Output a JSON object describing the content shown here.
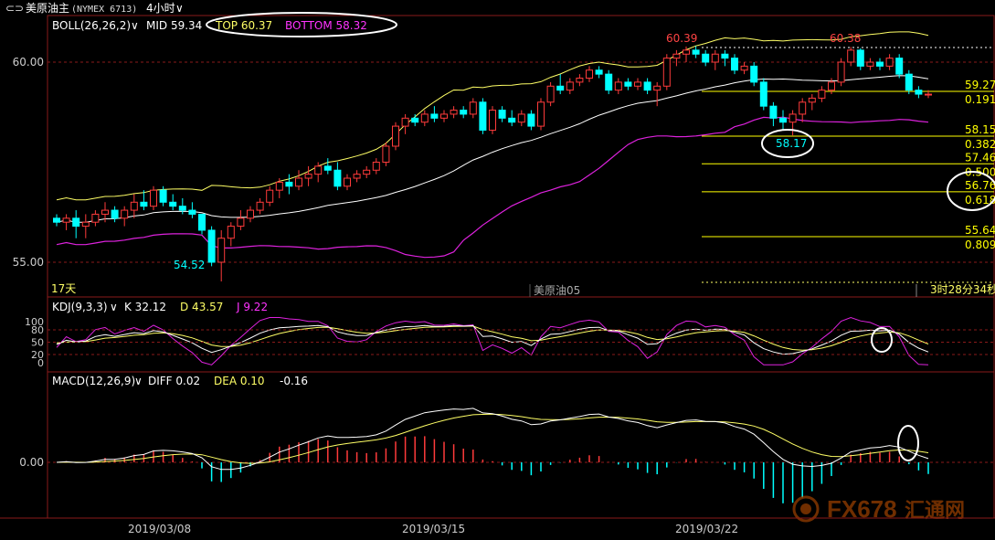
{
  "header": {
    "back_glyph": "⊂⊃",
    "instrument": "美原油主",
    "code": "(NYMEX 6713)",
    "period": "4小时",
    "chevron": "∨"
  },
  "boll": {
    "label": "BOLL(26,26,2)",
    "mid": "MID 59.34",
    "top": "TOP 60.37",
    "bottom": "BOTTOM 58.32"
  },
  "price_axis": {
    "ticks": [
      "60.00",
      "55.00"
    ]
  },
  "annotations": {
    "high1": "60.39",
    "high2": "60.38",
    "low": "54.52",
    "swing_low": "58.17",
    "bars_count": "17天",
    "watermark_symbol": "美原油05",
    "countdown": "3时28分34秒"
  },
  "fib_levels": [
    {
      "price": "59.27",
      "ratio": "0.191"
    },
    {
      "price": "58.15",
      "ratio": "0.382"
    },
    {
      "price": "57.46",
      "ratio": "0.500"
    },
    {
      "price": "56.76",
      "ratio": "0.618"
    },
    {
      "price": "55.64",
      "ratio": "0.809"
    }
  ],
  "kdj": {
    "label": "KDJ(9,3,3)",
    "k": "K 32.12",
    "d": "D 43.57",
    "j": "J 9.22",
    "ticks": [
      "100",
      "80",
      "50",
      "20",
      "0"
    ]
  },
  "macd": {
    "label": "MACD(12,26,9)",
    "diff": "DIFF 0.02",
    "dea": "DEA 0.10",
    "hist": "-0.16",
    "zero_tick": "0.00"
  },
  "x_axis": {
    "dates": [
      "2019/03/08",
      "2019/03/15",
      "2019/03/22"
    ]
  },
  "logo": {
    "text": "FX678",
    "cn": "汇通网"
  },
  "colors": {
    "up": "#ff3b3b",
    "down": "#00ffff",
    "mid_line": "#ffffff",
    "upper_band": "#ffff66",
    "lower_band": "#dd22dd",
    "grid_red": "#8a1a1a",
    "fib": "#ffff00",
    "text_axis": "#cccccc"
  },
  "chart_data": {
    "type": "candlestick",
    "timeframe": "4h",
    "ylim_price": [
      54.2,
      61.0
    ],
    "candles": [
      [
        56.1,
        56.2,
        55.9,
        56.0
      ],
      [
        56.0,
        56.2,
        55.8,
        56.1
      ],
      [
        56.1,
        56.3,
        55.6,
        55.9
      ],
      [
        55.9,
        56.2,
        55.6,
        56.0
      ],
      [
        56.0,
        56.3,
        55.9,
        56.2
      ],
      [
        56.2,
        56.5,
        56.0,
        56.3
      ],
      [
        56.3,
        56.4,
        56.0,
        56.1
      ],
      [
        56.1,
        56.4,
        55.9,
        56.3
      ],
      [
        56.3,
        56.7,
        56.1,
        56.5
      ],
      [
        56.5,
        56.8,
        56.3,
        56.4
      ],
      [
        56.4,
        56.9,
        56.3,
        56.8
      ],
      [
        56.8,
        56.9,
        56.4,
        56.5
      ],
      [
        56.5,
        56.7,
        56.3,
        56.4
      ],
      [
        56.4,
        56.6,
        56.2,
        56.3
      ],
      [
        56.3,
        56.5,
        56.1,
        56.2
      ],
      [
        56.2,
        56.2,
        55.7,
        55.8
      ],
      [
        55.8,
        55.9,
        54.9,
        55.0
      ],
      [
        55.0,
        55.8,
        54.52,
        55.6
      ],
      [
        55.6,
        56.0,
        55.4,
        55.9
      ],
      [
        55.9,
        56.3,
        55.8,
        56.1
      ],
      [
        56.1,
        56.4,
        56.0,
        56.3
      ],
      [
        56.3,
        56.6,
        56.2,
        56.5
      ],
      [
        56.5,
        56.9,
        56.4,
        56.8
      ],
      [
        56.8,
        57.1,
        56.6,
        57.0
      ],
      [
        57.0,
        57.2,
        56.7,
        56.9
      ],
      [
        56.9,
        57.3,
        56.8,
        57.1
      ],
      [
        57.1,
        57.4,
        56.9,
        57.2
      ],
      [
        57.2,
        57.5,
        57.0,
        57.4
      ],
      [
        57.4,
        57.6,
        57.2,
        57.3
      ],
      [
        57.3,
        57.5,
        56.8,
        56.9
      ],
      [
        56.9,
        57.2,
        56.8,
        57.1
      ],
      [
        57.1,
        57.3,
        57.0,
        57.2
      ],
      [
        57.2,
        57.4,
        57.1,
        57.3
      ],
      [
        57.3,
        57.6,
        57.2,
        57.5
      ],
      [
        57.5,
        58.0,
        57.4,
        57.9
      ],
      [
        57.9,
        58.5,
        57.8,
        58.4
      ],
      [
        58.4,
        58.7,
        58.2,
        58.6
      ],
      [
        58.6,
        58.7,
        58.4,
        58.5
      ],
      [
        58.5,
        58.8,
        58.4,
        58.7
      ],
      [
        58.7,
        58.9,
        58.5,
        58.6
      ],
      [
        58.6,
        58.8,
        58.5,
        58.7
      ],
      [
        58.7,
        58.9,
        58.6,
        58.8
      ],
      [
        58.8,
        58.9,
        58.6,
        58.7
      ],
      [
        58.7,
        59.1,
        58.6,
        59.0
      ],
      [
        59.0,
        59.1,
        58.2,
        58.3
      ],
      [
        58.3,
        58.9,
        58.2,
        58.8
      ],
      [
        58.8,
        58.9,
        58.5,
        58.6
      ],
      [
        58.6,
        58.8,
        58.4,
        58.5
      ],
      [
        58.5,
        58.8,
        58.4,
        58.7
      ],
      [
        58.7,
        58.8,
        58.3,
        58.4
      ],
      [
        58.4,
        59.1,
        58.3,
        59.0
      ],
      [
        59.0,
        59.5,
        58.9,
        59.4
      ],
      [
        59.4,
        59.7,
        59.2,
        59.3
      ],
      [
        59.3,
        59.6,
        59.2,
        59.5
      ],
      [
        59.5,
        59.7,
        59.4,
        59.6
      ],
      [
        59.6,
        59.9,
        59.5,
        59.8
      ],
      [
        59.8,
        59.9,
        59.6,
        59.7
      ],
      [
        59.7,
        59.8,
        59.2,
        59.3
      ],
      [
        59.3,
        59.6,
        59.2,
        59.5
      ],
      [
        59.5,
        59.6,
        59.3,
        59.4
      ],
      [
        59.4,
        59.6,
        59.3,
        59.5
      ],
      [
        59.5,
        59.6,
        59.2,
        59.3
      ],
      [
        59.3,
        59.5,
        58.9,
        59.4
      ],
      [
        59.4,
        60.2,
        59.3,
        60.1
      ],
      [
        60.1,
        60.3,
        59.9,
        60.2
      ],
      [
        60.2,
        60.39,
        60.0,
        60.3
      ],
      [
        60.3,
        60.4,
        60.1,
        60.2
      ],
      [
        60.2,
        60.3,
        59.9,
        60.0
      ],
      [
        60.0,
        60.3,
        59.8,
        60.2
      ],
      [
        60.2,
        60.3,
        59.9,
        60.1
      ],
      [
        60.1,
        60.2,
        59.7,
        59.8
      ],
      [
        59.8,
        60.0,
        59.7,
        59.9
      ],
      [
        59.9,
        60.0,
        59.4,
        59.5
      ],
      [
        59.5,
        59.6,
        58.8,
        58.9
      ],
      [
        58.9,
        59.0,
        58.4,
        58.6
      ],
      [
        58.6,
        58.8,
        58.3,
        58.5
      ],
      [
        58.5,
        58.8,
        58.17,
        58.7
      ],
      [
        58.7,
        59.1,
        58.5,
        59.0
      ],
      [
        59.0,
        59.2,
        58.8,
        59.1
      ],
      [
        59.1,
        59.4,
        59.0,
        59.3
      ],
      [
        59.3,
        59.6,
        59.2,
        59.5
      ],
      [
        59.5,
        60.1,
        59.4,
        60.0
      ],
      [
        60.0,
        60.38,
        59.9,
        60.3
      ],
      [
        60.3,
        60.35,
        59.8,
        59.9
      ],
      [
        59.9,
        60.1,
        59.8,
        60.0
      ],
      [
        60.0,
        60.1,
        59.8,
        59.9
      ],
      [
        59.9,
        60.2,
        59.8,
        60.1
      ],
      [
        60.1,
        60.2,
        59.6,
        59.7
      ],
      [
        59.7,
        59.8,
        59.2,
        59.3
      ],
      [
        59.3,
        59.4,
        59.1,
        59.2
      ],
      [
        59.2,
        59.3,
        59.1,
        59.2
      ]
    ],
    "bands": {
      "mid_last": 59.34,
      "top_last": 60.37,
      "bottom_last": 58.32
    },
    "kdj_last": {
      "K": 32.12,
      "D": 43.57,
      "J": 9.22
    },
    "macd_last": {
      "DIFF": 0.02,
      "DEA": 0.1,
      "MACD": -0.16
    }
  }
}
